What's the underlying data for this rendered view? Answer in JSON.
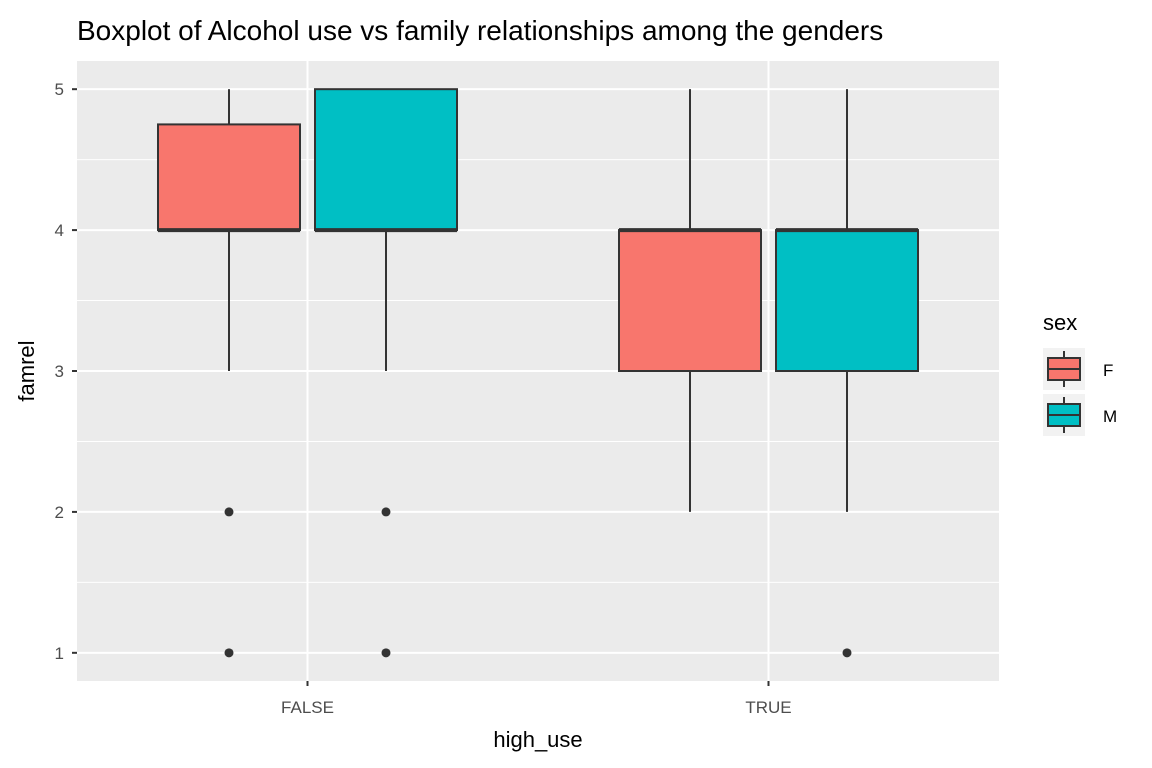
{
  "chart_data": {
    "type": "boxplot",
    "title": "Boxplot of Alcohol use vs family relationships among the genders",
    "xlabel": "high_use",
    "ylabel": "famrel",
    "categories": [
      "FALSE",
      "TRUE"
    ],
    "ylim": [
      0.8,
      5.2
    ],
    "yticks": [
      1,
      2,
      3,
      4,
      5
    ],
    "grid": true,
    "legend": {
      "title": "sex",
      "position": "right",
      "entries": [
        "F",
        "M"
      ]
    },
    "colors": {
      "F": "#F8766D",
      "M": "#00BFC4",
      "panel": "#EBEBEB",
      "grid": "#FFFFFF",
      "outline": "#333333"
    },
    "series": [
      {
        "name": "F",
        "boxes": [
          {
            "category": "FALSE",
            "min": 3,
            "q1": 4,
            "median": 4,
            "q3": 4.75,
            "max": 5,
            "outliers": [
              2,
              1
            ]
          },
          {
            "category": "TRUE",
            "min": 2,
            "q1": 3,
            "median": 4,
            "q3": 4,
            "max": 5,
            "outliers": []
          }
        ]
      },
      {
        "name": "M",
        "boxes": [
          {
            "category": "FALSE",
            "min": 3,
            "q1": 4,
            "median": 4,
            "q3": 5,
            "max": 5,
            "outliers": [
              2,
              1
            ]
          },
          {
            "category": "TRUE",
            "min": 2,
            "q1": 3,
            "median": 4,
            "q3": 4,
            "max": 5,
            "outliers": [
              1
            ]
          }
        ]
      }
    ]
  }
}
